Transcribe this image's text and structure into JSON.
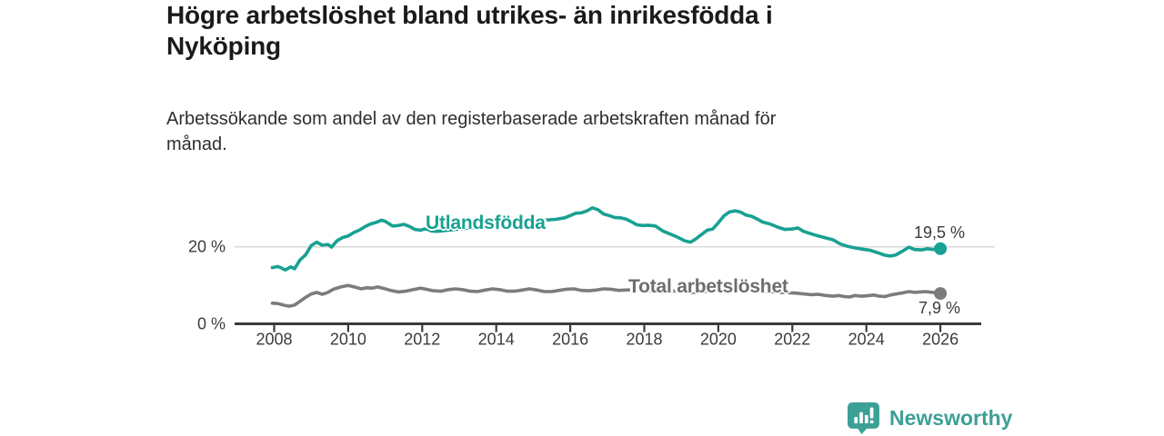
{
  "header": {
    "title_line1": "Högre arbetslöshet bland utrikes- än inrikesfödda i",
    "title_line2": "Nyköping",
    "subtitle_line1": "Arbetssökande som andel av den registerbaserade arbetskraften månad för",
    "subtitle_line2": "månad."
  },
  "colors": {
    "accent_teal": "#18a192",
    "logo_teal": "#3da096",
    "line_gray": "#7c7c7c",
    "label_gray": "#6d6d6d",
    "grid_gray": "#d9d9d9",
    "axis_dark": "#3a3a3a",
    "tick_text": "#3c3c3c",
    "text_dark": "#1a1a1a",
    "text_body": "#2e2e2e"
  },
  "chart_data": {
    "type": "line",
    "title": "Högre arbetslöshet bland utrikes- än inrikesfödda i Nyköping",
    "subtitle": "Arbetssökande som andel av den registerbaserade arbetskraften månad för månad.",
    "unit": "%",
    "grid": "horizontal line at 20 % only",
    "legend_position": "inline labels on lines, end-value labels at right",
    "x_ticks": [
      "2008",
      "2010",
      "2012",
      "2014",
      "2016",
      "2018",
      "2020",
      "2022",
      "2024",
      "2026"
    ],
    "x_range": [
      2007.9,
      2027.1
    ],
    "ylim": [
      0,
      32
    ],
    "y_ticks": [
      {
        "value": 0,
        "label": "0 %"
      },
      {
        "value": 20,
        "label": "20 %"
      }
    ],
    "gridline_values": [
      20
    ],
    "series": [
      {
        "name": "Utlandsfödda",
        "color_key": "accent_teal",
        "end_label": "19,5 %",
        "end_value": 19.5,
        "points": [
          [
            2007.95,
            14.6
          ],
          [
            2008.1,
            14.9
          ],
          [
            2008.2,
            14.5
          ],
          [
            2008.3,
            14.0
          ],
          [
            2008.45,
            14.8
          ],
          [
            2008.55,
            14.3
          ],
          [
            2008.7,
            16.6
          ],
          [
            2008.85,
            17.9
          ],
          [
            2009.0,
            20.3
          ],
          [
            2009.15,
            21.2
          ],
          [
            2009.3,
            20.4
          ],
          [
            2009.45,
            20.6
          ],
          [
            2009.55,
            19.9
          ],
          [
            2009.7,
            21.6
          ],
          [
            2009.85,
            22.4
          ],
          [
            2010.0,
            22.8
          ],
          [
            2010.15,
            23.7
          ],
          [
            2010.3,
            24.3
          ],
          [
            2010.45,
            25.2
          ],
          [
            2010.6,
            25.9
          ],
          [
            2010.75,
            26.3
          ],
          [
            2010.9,
            26.9
          ],
          [
            2011.0,
            26.6
          ],
          [
            2011.2,
            25.4
          ],
          [
            2011.35,
            25.5
          ],
          [
            2011.5,
            25.8
          ],
          [
            2011.65,
            25.3
          ],
          [
            2011.8,
            24.5
          ],
          [
            2011.95,
            24.3
          ],
          [
            2012.1,
            24.7
          ],
          [
            2012.25,
            24.1
          ],
          [
            2012.4,
            24.0
          ],
          [
            2012.6,
            24.2
          ],
          [
            2012.9,
            24.5
          ],
          [
            2013.2,
            24.8
          ],
          [
            2013.5,
            25.0
          ],
          [
            2013.8,
            25.2
          ],
          [
            2014.1,
            25.5
          ],
          [
            2014.4,
            25.9
          ],
          [
            2014.7,
            26.1
          ],
          [
            2015.0,
            26.5
          ],
          [
            2015.3,
            26.9
          ],
          [
            2015.6,
            27.1
          ],
          [
            2015.85,
            27.5
          ],
          [
            2016.0,
            28.1
          ],
          [
            2016.15,
            28.7
          ],
          [
            2016.3,
            28.8
          ],
          [
            2016.45,
            29.3
          ],
          [
            2016.6,
            30.1
          ],
          [
            2016.75,
            29.6
          ],
          [
            2016.9,
            28.5
          ],
          [
            2017.05,
            28.1
          ],
          [
            2017.2,
            27.6
          ],
          [
            2017.35,
            27.5
          ],
          [
            2017.5,
            27.2
          ],
          [
            2017.65,
            26.5
          ],
          [
            2017.8,
            25.7
          ],
          [
            2017.95,
            25.5
          ],
          [
            2018.1,
            25.6
          ],
          [
            2018.3,
            25.4
          ],
          [
            2018.5,
            24.1
          ],
          [
            2018.7,
            23.3
          ],
          [
            2018.9,
            22.5
          ],
          [
            2019.1,
            21.5
          ],
          [
            2019.25,
            21.2
          ],
          [
            2019.4,
            22.1
          ],
          [
            2019.55,
            23.2
          ],
          [
            2019.7,
            24.3
          ],
          [
            2019.85,
            24.6
          ],
          [
            2020.0,
            26.2
          ],
          [
            2020.15,
            28.0
          ],
          [
            2020.3,
            29.0
          ],
          [
            2020.45,
            29.3
          ],
          [
            2020.6,
            29.0
          ],
          [
            2020.75,
            28.2
          ],
          [
            2020.9,
            27.9
          ],
          [
            2021.05,
            27.2
          ],
          [
            2021.2,
            26.4
          ],
          [
            2021.4,
            25.9
          ],
          [
            2021.6,
            25.1
          ],
          [
            2021.8,
            24.5
          ],
          [
            2022.0,
            24.6
          ],
          [
            2022.15,
            24.9
          ],
          [
            2022.3,
            24.0
          ],
          [
            2022.5,
            23.4
          ],
          [
            2022.7,
            22.8
          ],
          [
            2022.9,
            22.3
          ],
          [
            2023.1,
            21.8
          ],
          [
            2023.3,
            20.7
          ],
          [
            2023.5,
            20.1
          ],
          [
            2023.7,
            19.7
          ],
          [
            2023.9,
            19.4
          ],
          [
            2024.1,
            19.1
          ],
          [
            2024.3,
            18.5
          ],
          [
            2024.5,
            17.8
          ],
          [
            2024.65,
            17.6
          ],
          [
            2024.8,
            17.9
          ],
          [
            2025.0,
            19.0
          ],
          [
            2025.15,
            19.9
          ],
          [
            2025.3,
            19.3
          ],
          [
            2025.5,
            19.2
          ],
          [
            2025.65,
            19.5
          ],
          [
            2025.8,
            19.3
          ],
          [
            2026.0,
            19.5
          ]
        ]
      },
      {
        "name": "Total arbetslöshet",
        "color_key": "line_gray",
        "end_label": "7,9 %",
        "end_value": 7.9,
        "points": [
          [
            2007.95,
            5.4
          ],
          [
            2008.1,
            5.3
          ],
          [
            2008.25,
            4.9
          ],
          [
            2008.4,
            4.6
          ],
          [
            2008.55,
            4.9
          ],
          [
            2008.7,
            5.9
          ],
          [
            2008.85,
            6.9
          ],
          [
            2009.0,
            7.8
          ],
          [
            2009.15,
            8.2
          ],
          [
            2009.3,
            7.7
          ],
          [
            2009.45,
            8.2
          ],
          [
            2009.6,
            9.0
          ],
          [
            2009.8,
            9.6
          ],
          [
            2010.0,
            10.0
          ],
          [
            2010.2,
            9.5
          ],
          [
            2010.35,
            9.1
          ],
          [
            2010.5,
            9.4
          ],
          [
            2010.65,
            9.3
          ],
          [
            2010.8,
            9.6
          ],
          [
            2011.0,
            9.1
          ],
          [
            2011.15,
            8.7
          ],
          [
            2011.35,
            8.3
          ],
          [
            2011.55,
            8.5
          ],
          [
            2011.75,
            8.9
          ],
          [
            2011.95,
            9.3
          ],
          [
            2012.1,
            9.0
          ],
          [
            2012.3,
            8.6
          ],
          [
            2012.5,
            8.5
          ],
          [
            2012.7,
            8.9
          ],
          [
            2012.9,
            9.1
          ],
          [
            2013.1,
            8.9
          ],
          [
            2013.3,
            8.5
          ],
          [
            2013.5,
            8.4
          ],
          [
            2013.7,
            8.8
          ],
          [
            2013.9,
            9.1
          ],
          [
            2014.1,
            8.9
          ],
          [
            2014.3,
            8.5
          ],
          [
            2014.5,
            8.5
          ],
          [
            2014.7,
            8.8
          ],
          [
            2014.9,
            9.1
          ],
          [
            2015.1,
            8.8
          ],
          [
            2015.3,
            8.4
          ],
          [
            2015.5,
            8.4
          ],
          [
            2015.7,
            8.7
          ],
          [
            2015.9,
            9.0
          ],
          [
            2016.1,
            9.1
          ],
          [
            2016.3,
            8.7
          ],
          [
            2016.5,
            8.6
          ],
          [
            2016.7,
            8.8
          ],
          [
            2016.9,
            9.1
          ],
          [
            2017.1,
            9.0
          ],
          [
            2017.3,
            8.7
          ],
          [
            2017.5,
            8.8
          ],
          [
            2017.7,
            8.9
          ],
          [
            2017.9,
            8.7
          ],
          [
            2018.1,
            8.6
          ],
          [
            2018.3,
            8.4
          ],
          [
            2018.5,
            8.3
          ],
          [
            2018.7,
            8.5
          ],
          [
            2018.9,
            8.6
          ],
          [
            2019.1,
            8.4
          ],
          [
            2019.3,
            8.2
          ],
          [
            2019.5,
            8.3
          ],
          [
            2019.7,
            8.5
          ],
          [
            2019.9,
            8.6
          ],
          [
            2020.1,
            8.7
          ],
          [
            2020.3,
            8.9
          ],
          [
            2020.5,
            9.0
          ],
          [
            2020.7,
            8.9
          ],
          [
            2020.9,
            8.8
          ],
          [
            2021.1,
            8.7
          ],
          [
            2021.3,
            8.5
          ],
          [
            2021.5,
            8.3
          ],
          [
            2021.7,
            8.2
          ],
          [
            2021.9,
            8.1
          ],
          [
            2022.1,
            8.0
          ],
          [
            2022.3,
            7.8
          ],
          [
            2022.5,
            7.6
          ],
          [
            2022.7,
            7.7
          ],
          [
            2022.9,
            7.4
          ],
          [
            2023.1,
            7.2
          ],
          [
            2023.25,
            7.4
          ],
          [
            2023.4,
            7.1
          ],
          [
            2023.55,
            7.0
          ],
          [
            2023.7,
            7.4
          ],
          [
            2023.85,
            7.2
          ],
          [
            2024.0,
            7.3
          ],
          [
            2024.2,
            7.5
          ],
          [
            2024.35,
            7.2
          ],
          [
            2024.5,
            7.1
          ],
          [
            2024.65,
            7.5
          ],
          [
            2024.8,
            7.8
          ],
          [
            2025.0,
            8.1
          ],
          [
            2025.15,
            8.4
          ],
          [
            2025.3,
            8.2
          ],
          [
            2025.45,
            8.3
          ],
          [
            2025.6,
            8.4
          ],
          [
            2025.8,
            8.2
          ],
          [
            2026.0,
            7.9
          ]
        ]
      }
    ]
  },
  "footer": {
    "brand": "Newsworthy"
  }
}
